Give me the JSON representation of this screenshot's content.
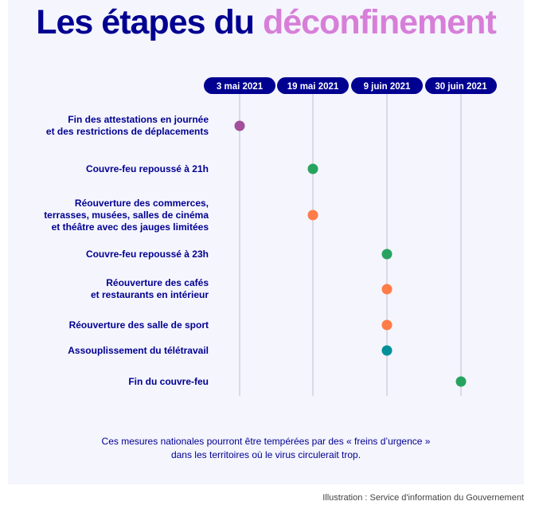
{
  "title": {
    "part1": "Les étapes du ",
    "part2": "déconfinement"
  },
  "chart_data": {
    "type": "timeline",
    "dates": [
      "3 mai 2021",
      "19 mai 2021",
      "9 juin 2021",
      "30 juin 2021"
    ],
    "steps": [
      {
        "label": "Fin des attestations en journée\net des restrictions de déplacements",
        "date": "3 mai 2021",
        "color": "#a24f9c"
      },
      {
        "label": "Couvre-feu repoussé à 21h",
        "date": "19 mai 2021",
        "color": "#26a45f"
      },
      {
        "label": "Réouverture des commerces,\nterrasses, musées, salles de cinéma\net théâtre avec des jauges limitées",
        "date": "19 mai 2021",
        "color": "#ff7b47"
      },
      {
        "label": "Couvre-feu repoussé à 23h",
        "date": "9 juin 2021",
        "color": "#26a45f"
      },
      {
        "label": "Réouverture des cafés\net restaurants en intérieur",
        "date": "9 juin 2021",
        "color": "#ff7b47"
      },
      {
        "label": "Réouverture des salle de sport",
        "date": "9 juin 2021",
        "color": "#ff7b47"
      },
      {
        "label": "Assouplissement du télétravail",
        "date": "9 juin 2021",
        "color": "#009099"
      },
      {
        "label": "Fin du couvre-feu",
        "date": "30 juin 2021",
        "color": "#26a45f"
      }
    ]
  },
  "footnote": "Ces mesures nationales pourront être tempérées par des « freins d’urgence »\ndans les territoires où le virus circulerait trop.",
  "credit": "Illustration : Service d'information du Gouvernement",
  "colors": {
    "navy": "#000091",
    "pink": "#d77fd8",
    "line": "#c8c8d4"
  }
}
